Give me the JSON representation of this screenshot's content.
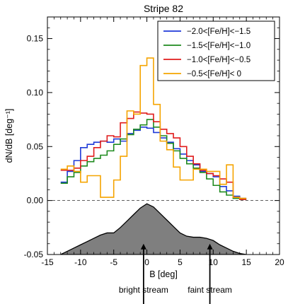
{
  "chart_data": {
    "type": "line",
    "title": "Stripe 82",
    "xlabel": "B [deg]",
    "ylabel": "dN/dB [deg⁻¹]",
    "xlim": [
      -15,
      20
    ],
    "ylim": [
      -0.05,
      0.17
    ],
    "xticks": [
      -15,
      -10,
      -5,
      0,
      5,
      10,
      15,
      20
    ],
    "xtick_labels": [
      "-15",
      "-10",
      "-5",
      "0",
      "5",
      "10",
      "15",
      "20"
    ],
    "yticks": [
      -0.05,
      0.0,
      0.05,
      0.1,
      0.15
    ],
    "ytick_labels": [
      "-0.05",
      "0.00",
      "0.05",
      "0.10",
      "0.15"
    ],
    "grid": false,
    "legend_position": "top-right",
    "bin_edges": [
      -13,
      -12,
      -11,
      -10,
      -9,
      -8,
      -7,
      -6,
      -5,
      -4,
      -3,
      -2,
      -1,
      0,
      1,
      2,
      3,
      4,
      5,
      6,
      7,
      8,
      9,
      10,
      11,
      12,
      13,
      14,
      15
    ],
    "series": [
      {
        "name": "−2.0<[Fe/H]<−1.5",
        "color": "#1f3ad8",
        "values": [
          0.017,
          0.027,
          0.037,
          0.049,
          0.052,
          0.054,
          0.055,
          0.054,
          0.057,
          0.055,
          0.062,
          0.065,
          0.068,
          0.067,
          0.063,
          0.058,
          0.054,
          0.048,
          0.043,
          0.037,
          0.033,
          0.027,
          0.025,
          0.022,
          0.013,
          0.009,
          0.004,
          0.002
        ]
      },
      {
        "name": "−1.5<[Fe/H]<−1.0",
        "color": "#1e8a1e",
        "values": [
          0.016,
          0.022,
          0.026,
          0.032,
          0.036,
          0.039,
          0.042,
          0.046,
          0.052,
          0.057,
          0.061,
          0.066,
          0.07,
          0.075,
          0.068,
          0.06,
          0.053,
          0.046,
          0.039,
          0.034,
          0.03,
          0.026,
          0.02,
          0.014,
          0.008,
          0.005,
          0.002,
          0.001
        ]
      },
      {
        "name": "−1.0<[Fe/H]<−0.5",
        "color": "#e01c1c",
        "values": [
          0.028,
          0.028,
          0.03,
          0.037,
          0.041,
          0.049,
          0.055,
          0.06,
          0.059,
          0.072,
          0.076,
          0.082,
          0.081,
          0.08,
          0.073,
          0.066,
          0.062,
          0.058,
          0.05,
          0.041,
          0.034,
          0.028,
          0.025,
          0.023,
          0.02,
          0.017,
          0.003,
          0.001
        ]
      },
      {
        "name": "−0.5<[Fe/H]< 0",
        "color": "#f5a400",
        "values": [
          0.029,
          0.032,
          0.027,
          0.017,
          0.023,
          0.023,
          0.003,
          0.003,
          0.019,
          0.041,
          0.083,
          0.08,
          0.125,
          0.132,
          0.089,
          0.055,
          0.047,
          0.031,
          0.019,
          0.019,
          0.029,
          0.029,
          0.027,
          0.027,
          0.015,
          0.033,
          0.003,
          0.002
        ]
      }
    ],
    "profile": {
      "color": "#7f7f7f",
      "x": [
        -13,
        -12,
        -11,
        -10,
        -9,
        -8,
        -7,
        -6,
        -5,
        -4,
        -3,
        -2,
        -1,
        0,
        1,
        2,
        3,
        4,
        5,
        6,
        7,
        8,
        9,
        10,
        11,
        12,
        13,
        14,
        15
      ],
      "y": [
        -0.05,
        -0.047,
        -0.044,
        -0.041,
        -0.038,
        -0.035,
        -0.032,
        -0.03,
        -0.03,
        -0.025,
        -0.019,
        -0.013,
        -0.007,
        -0.003,
        -0.006,
        -0.012,
        -0.018,
        -0.024,
        -0.03,
        -0.033,
        -0.034,
        -0.034,
        -0.035,
        -0.037,
        -0.041,
        -0.044,
        -0.047,
        -0.049,
        -0.05
      ]
    },
    "annotations": [
      {
        "text": "bright stream",
        "x": -0.5,
        "arrow_tail_y": -0.108,
        "arrow_head_y": -0.04
      },
      {
        "text": "faint stream",
        "x": 9.5,
        "arrow_tail_y": -0.108,
        "arrow_head_y": -0.04
      }
    ]
  }
}
